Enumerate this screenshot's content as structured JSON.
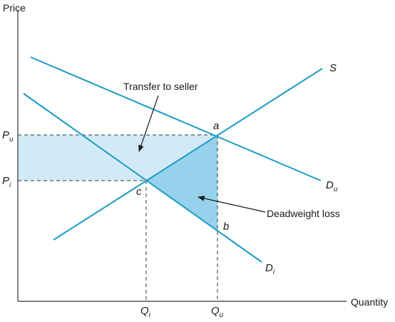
{
  "axes": {
    "y_label": "Price",
    "x_label": "Quantity"
  },
  "curves": {
    "supply": "S",
    "demand_uninformed": {
      "base": "D",
      "sub": "u"
    },
    "demand_informed": {
      "base": "D",
      "sub": "i"
    }
  },
  "prices": {
    "p_u": {
      "base": "P",
      "sub": "u"
    },
    "p_i": {
      "base": "P",
      "sub": "i"
    }
  },
  "quantities": {
    "q_i": {
      "base": "Q",
      "sub": "i"
    },
    "q_u": {
      "base": "Q",
      "sub": "u"
    }
  },
  "points": {
    "a": "a",
    "b": "b",
    "c": "c"
  },
  "annotations": {
    "transfer": "Transfer to seller",
    "deadweight": "Deadweight loss"
  },
  "colors": {
    "line": "#1b9bc4",
    "transfer_fill": "#d2eaf8",
    "deadweight_fill": "#96d2ec",
    "axis": "#333333"
  }
}
